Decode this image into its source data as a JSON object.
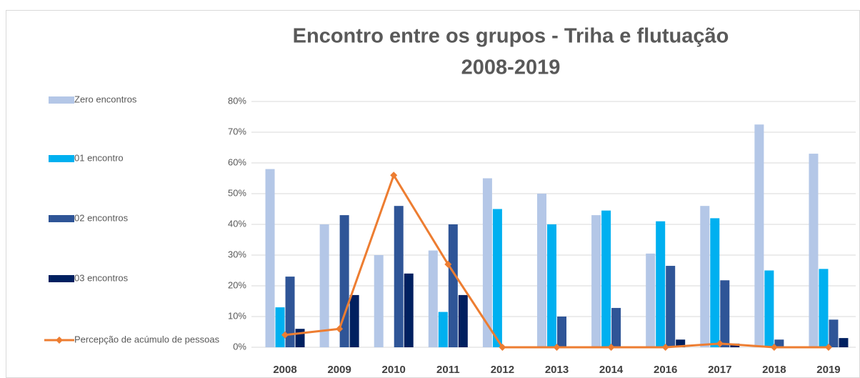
{
  "chart_data": {
    "type": "bar",
    "title": [
      "Encontro entre os grupos - Triha e flutuação",
      "2008-2019"
    ],
    "categories": [
      "2008",
      "2009",
      "2010",
      "2011",
      "2012",
      "2013",
      "2014",
      "2016",
      "2017",
      "2018",
      "2019"
    ],
    "series": [
      {
        "name": "Zero encontros",
        "color": "#b4c7e7",
        "values": [
          58,
          40,
          30,
          31.5,
          55,
          50,
          43,
          30.5,
          46,
          72.5,
          63
        ]
      },
      {
        "name": "01 encontro",
        "color": "#00b0f0",
        "values": [
          13,
          0,
          0,
          11.5,
          45,
          40,
          44.5,
          41,
          42,
          25,
          25.5
        ]
      },
      {
        "name": "02 encontros",
        "color": "#2f5597",
        "values": [
          23,
          43,
          46,
          40,
          0,
          10,
          12.8,
          26.5,
          21.8,
          2.5,
          9
        ]
      },
      {
        "name": "03 encontros",
        "color": "#002060",
        "values": [
          6,
          17,
          24,
          17,
          0,
          0,
          0,
          2.5,
          1.2,
          0,
          3
        ]
      },
      {
        "name": "Percepção de acúmulo de pessoas",
        "color": "#ed7d31",
        "type": "line",
        "values": [
          4,
          6,
          56,
          27,
          0,
          0,
          0,
          0,
          1.2,
          0,
          0
        ]
      }
    ],
    "ylim": [
      0,
      80
    ],
    "yticks": [
      {
        "value": 0,
        "label": "0%"
      },
      {
        "value": 10,
        "label": "10%"
      },
      {
        "value": 20,
        "label": "20%"
      },
      {
        "value": 30,
        "label": "30%"
      },
      {
        "value": 40,
        "label": "40%"
      },
      {
        "value": 50,
        "label": "50%"
      },
      {
        "value": 60,
        "label": "60%"
      },
      {
        "value": 70,
        "label": "70%"
      },
      {
        "value": 80,
        "label": "80%"
      }
    ],
    "grid": true,
    "legend": "left"
  }
}
